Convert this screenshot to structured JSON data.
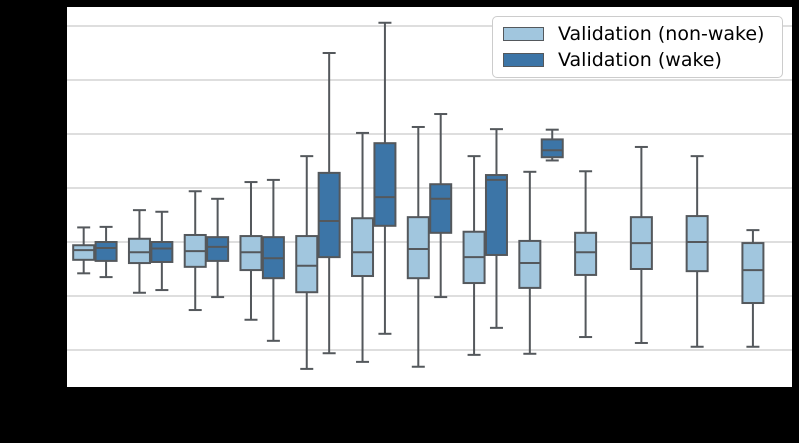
{
  "figure": {
    "background_color": "#000000",
    "plot_background_color": "#ffffff",
    "gridline_color": "#c9c9c9",
    "box_edge_color": "#54585c"
  },
  "legend": {
    "position": "upper right",
    "entries": [
      {
        "label": "Validation (non-wake)",
        "color": "#a1c6de"
      },
      {
        "label": "Validation (wake)",
        "color": "#3c75a7"
      }
    ]
  },
  "chart_data": {
    "type": "boxplot",
    "title": "",
    "xlabel": "",
    "ylabel": "",
    "axis_tick_labels_visible": false,
    "value_scale": "unlabeled horizontal gridline units: bottom gridline = 0, one gridline spacing = 1",
    "ylim": [
      -0.69,
      6.35
    ],
    "yticks_gridlines": [
      0,
      1,
      2,
      3,
      4,
      5,
      6
    ],
    "grid": "horizontal",
    "n_groups": 13,
    "group_labels_visible": false,
    "series": [
      {
        "name": "Validation (non-wake)",
        "color": "#a1c6de",
        "boxes": [
          {
            "group": 1,
            "whislo": 1.42,
            "q1": 1.67,
            "med": 1.85,
            "q3": 1.94,
            "whishi": 2.27
          },
          {
            "group": 2,
            "whislo": 1.06,
            "q1": 1.61,
            "med": 1.81,
            "q3": 2.06,
            "whishi": 2.59
          },
          {
            "group": 3,
            "whislo": 0.74,
            "q1": 1.54,
            "med": 1.83,
            "q3": 2.13,
            "whishi": 2.94
          },
          {
            "group": 4,
            "whislo": 0.56,
            "q1": 1.48,
            "med": 1.81,
            "q3": 2.11,
            "whishi": 3.11
          },
          {
            "group": 5,
            "whislo": -0.35,
            "q1": 1.07,
            "med": 1.56,
            "q3": 2.11,
            "whishi": 3.59
          },
          {
            "group": 6,
            "whislo": -0.22,
            "q1": 1.37,
            "med": 1.81,
            "q3": 2.44,
            "whishi": 4.02
          },
          {
            "group": 7,
            "whislo": -0.31,
            "q1": 1.33,
            "med": 1.87,
            "q3": 2.46,
            "whishi": 4.13
          },
          {
            "group": 8,
            "whislo": -0.09,
            "q1": 1.24,
            "med": 1.72,
            "q3": 2.19,
            "whishi": 3.59
          },
          {
            "group": 9,
            "whislo": -0.07,
            "q1": 1.15,
            "med": 1.61,
            "q3": 2.02,
            "whishi": 3.3
          },
          {
            "group": 10,
            "whislo": 0.24,
            "q1": 1.39,
            "med": 1.81,
            "q3": 2.17,
            "whishi": 3.31
          },
          {
            "group": 11,
            "whislo": 0.13,
            "q1": 1.5,
            "med": 1.98,
            "q3": 2.46,
            "whishi": 3.76
          },
          {
            "group": 12,
            "whislo": 0.06,
            "q1": 1.46,
            "med": 2.0,
            "q3": 2.48,
            "whishi": 3.59
          },
          {
            "group": 13,
            "whislo": 0.06,
            "q1": 0.87,
            "med": 1.48,
            "q3": 1.98,
            "whishi": 2.22
          }
        ]
      },
      {
        "name": "Validation (wake)",
        "color": "#3c75a7",
        "boxes": [
          {
            "group": 1,
            "whislo": 1.35,
            "q1": 1.65,
            "med": 1.89,
            "q3": 2.0,
            "whishi": 2.28
          },
          {
            "group": 2,
            "whislo": 1.11,
            "q1": 1.63,
            "med": 1.88,
            "q3": 2.0,
            "whishi": 2.56
          },
          {
            "group": 3,
            "whislo": 0.98,
            "q1": 1.65,
            "med": 1.91,
            "q3": 2.09,
            "whishi": 2.8
          },
          {
            "group": 4,
            "whislo": 0.17,
            "q1": 1.33,
            "med": 1.7,
            "q3": 2.09,
            "whishi": 3.15
          },
          {
            "group": 5,
            "whislo": -0.06,
            "q1": 1.72,
            "med": 2.39,
            "q3": 3.28,
            "whishi": 5.5
          },
          {
            "group": 6,
            "whislo": 0.3,
            "q1": 2.3,
            "med": 2.83,
            "q3": 3.83,
            "whishi": 6.06
          },
          {
            "group": 7,
            "whislo": 0.98,
            "q1": 2.17,
            "med": 2.8,
            "q3": 3.07,
            "whishi": 4.37
          },
          {
            "group": 8,
            "whislo": 0.41,
            "q1": 1.76,
            "med": 3.15,
            "q3": 3.24,
            "whishi": 4.09
          },
          {
            "group": 9,
            "whislo": 3.51,
            "q1": 3.57,
            "med": 3.7,
            "q3": 3.9,
            "whishi": 4.08
          }
        ]
      }
    ]
  }
}
